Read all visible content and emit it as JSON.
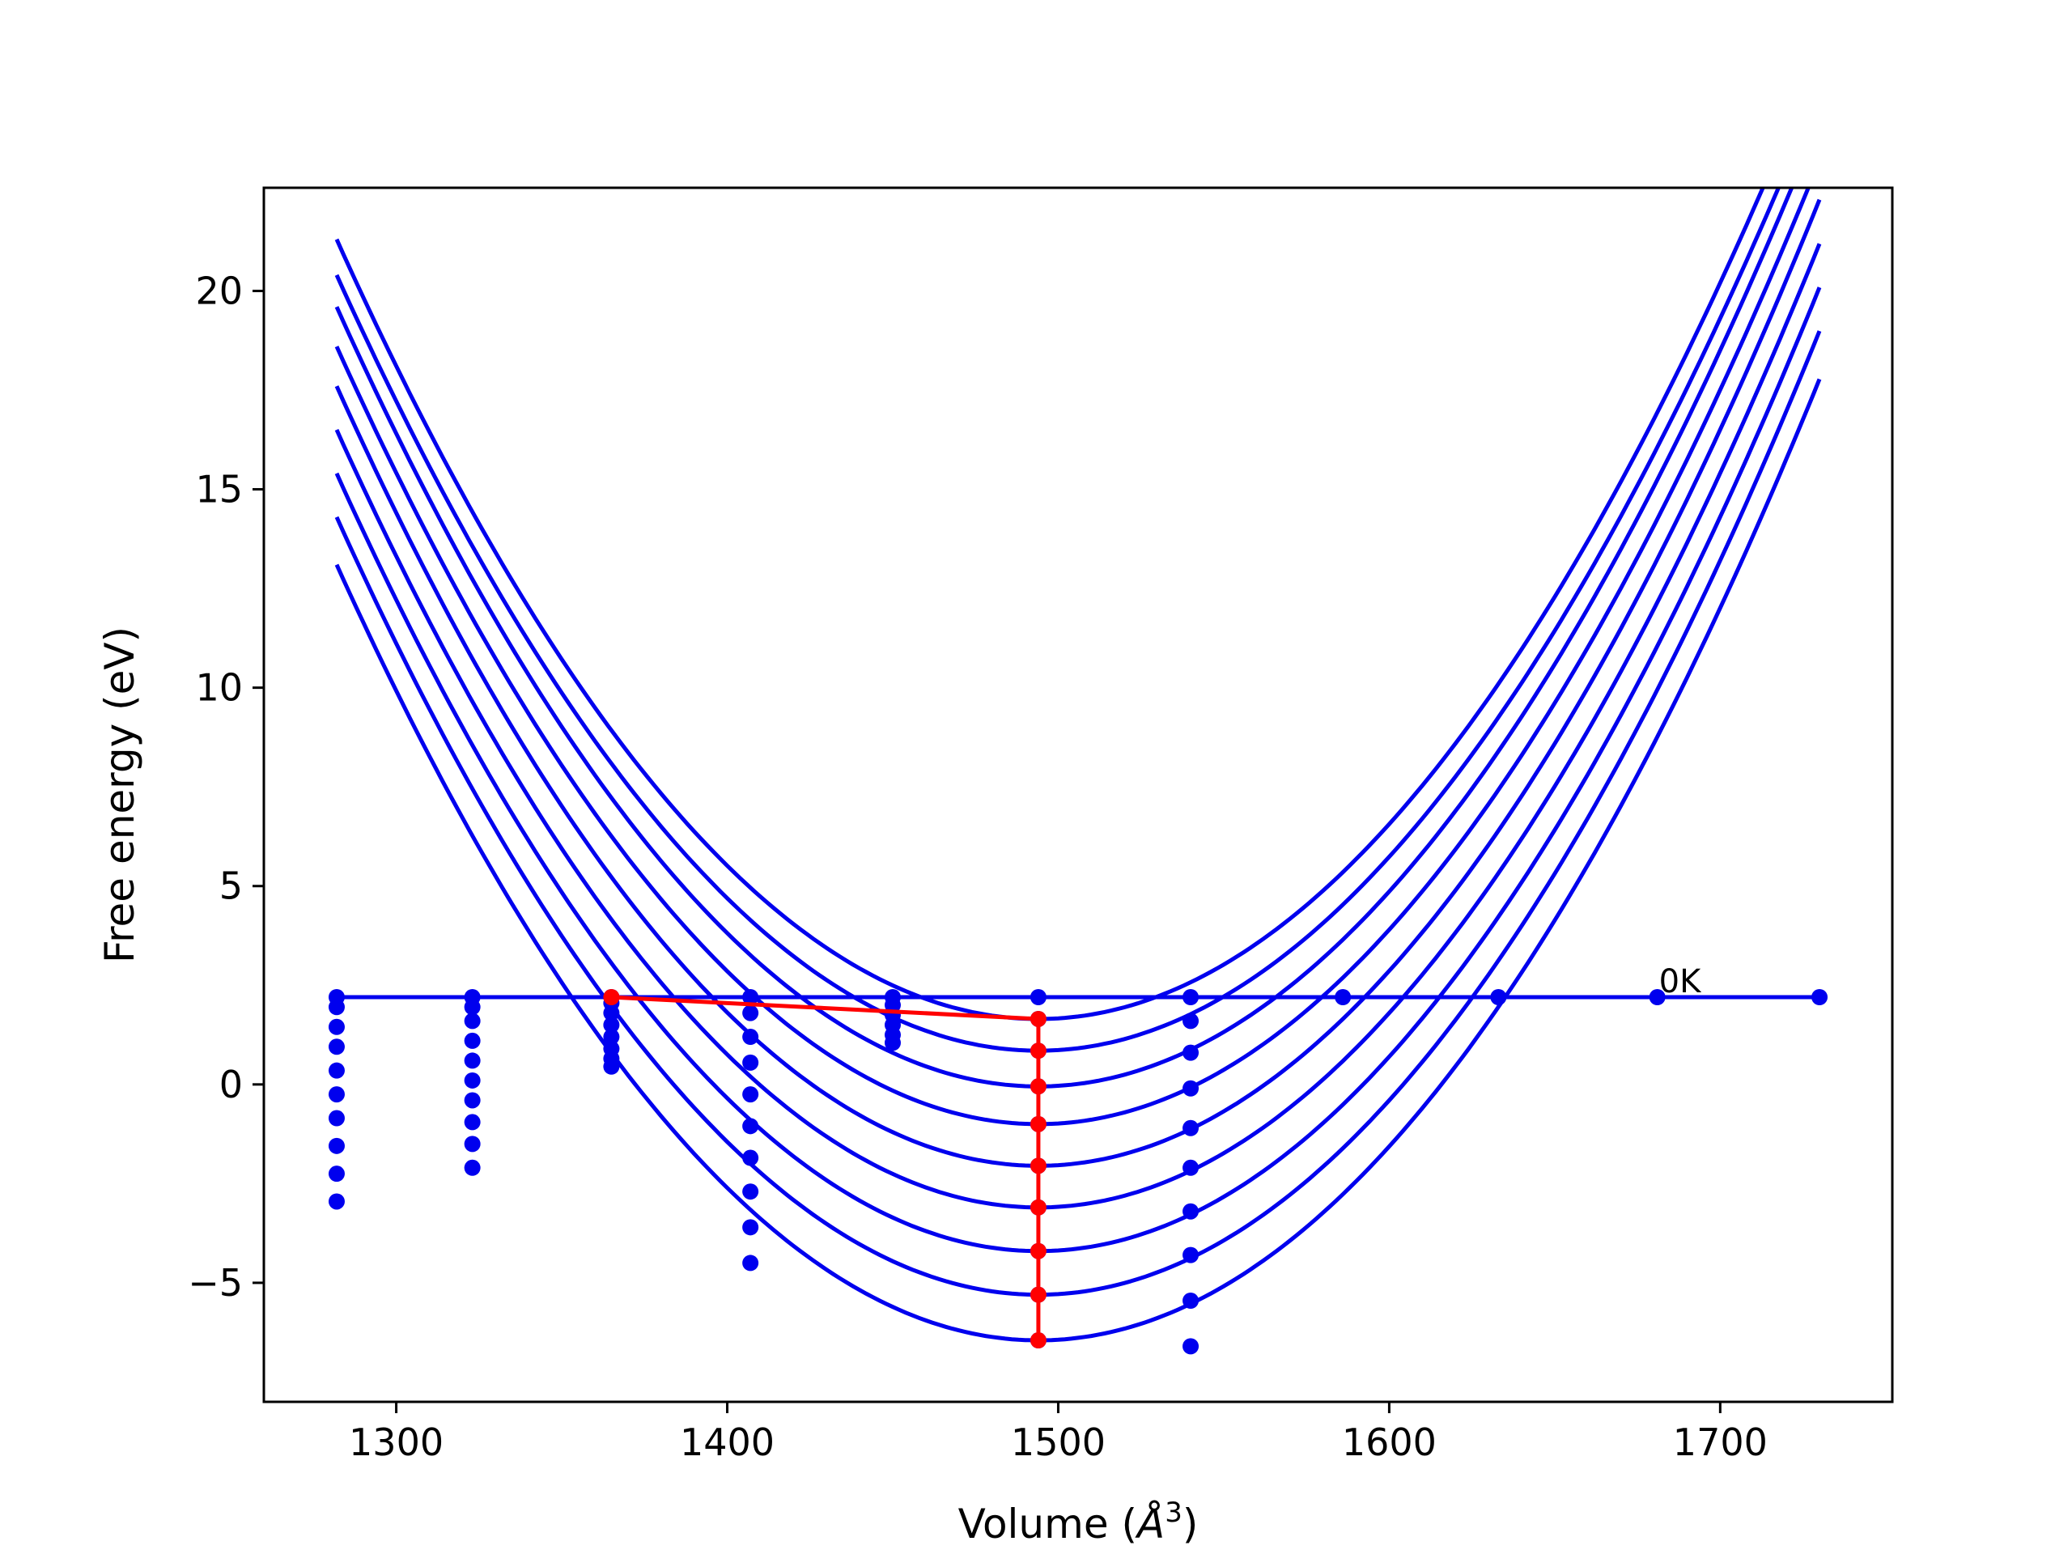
{
  "chart_data": {
    "type": "line",
    "title": "",
    "xlabel": "Volume (",
    "xlabel_unit": "Å",
    "xlabel_exp": "3",
    "xlabel_close": ")",
    "ylabel": "Free energy (eV)",
    "xlim": [
      1260,
      1752
    ],
    "ylim": [
      -8.0,
      22.6
    ],
    "xticks": [
      1300,
      1400,
      1500,
      1600,
      1700
    ],
    "yticks": [
      -5,
      0,
      5,
      10,
      15,
      20
    ],
    "ytick_labels": [
      "−5",
      "0",
      "5",
      "10",
      "15",
      "20"
    ],
    "grid": false,
    "legend": "none",
    "annotation": {
      "text": "0K",
      "x": 1681,
      "y": 2.2
    },
    "colors": {
      "curves": "#0000ee",
      "equilibrium": "#ff0000"
    },
    "curve_x_range": [
      1282,
      1730
    ],
    "curves": [
      {
        "vmin": 1494,
        "fmin": 1.65,
        "f_at_1282": 21.3
      },
      {
        "vmin": 1494,
        "fmin": 0.85,
        "f_at_1282": 20.4
      },
      {
        "vmin": 1494,
        "fmin": -0.05,
        "f_at_1282": 19.6
      },
      {
        "vmin": 1494,
        "fmin": -1.0,
        "f_at_1282": 18.6
      },
      {
        "vmin": 1494,
        "fmin": -2.05,
        "f_at_1282": 17.6
      },
      {
        "vmin": 1494,
        "fmin": -3.1,
        "f_at_1282": 16.5
      },
      {
        "vmin": 1494,
        "fmin": -4.2,
        "f_at_1282": 15.4
      },
      {
        "vmin": 1494,
        "fmin": -5.3,
        "f_at_1282": 14.3
      },
      {
        "vmin": 1494,
        "fmin": -6.45,
        "f_at_1282": 13.1
      }
    ],
    "zero_k_line": {
      "x": [
        1282,
        1323,
        1365,
        1407,
        1450,
        1494,
        1540,
        1586,
        1633,
        1681,
        1730
      ],
      "y": [
        2.2,
        2.2,
        2.2,
        2.2,
        2.2,
        2.2,
        2.2,
        2.2,
        2.2,
        2.2,
        2.2
      ]
    },
    "scatter": [
      {
        "x": 1282,
        "y": [
          2.2,
          1.95,
          1.45,
          0.95,
          0.35,
          -0.25,
          -0.85,
          -1.55,
          -2.25,
          -2.95
        ]
      },
      {
        "x": 1323,
        "y": [
          2.2,
          1.95,
          1.6,
          1.1,
          0.6,
          0.1,
          -0.4,
          -0.95,
          -1.5,
          -2.1
        ]
      },
      {
        "x": 1365,
        "y": [
          2.2,
          2.05,
          1.8,
          1.5,
          1.2,
          0.9,
          0.65,
          0.45
        ]
      },
      {
        "x": 1407,
        "y": [
          2.2,
          1.8,
          1.2,
          0.55,
          -0.25,
          -1.05,
          -1.85,
          -2.7,
          -3.6,
          -4.5
        ]
      },
      {
        "x": 1450,
        "y": [
          2.2,
          2.0,
          1.75,
          1.5,
          1.25,
          1.05
        ]
      },
      {
        "x": 1494,
        "y": [
          2.2,
          1.65,
          0.85,
          -0.05,
          -1.0,
          -2.05,
          -3.1,
          -4.2,
          -5.3,
          -6.45
        ]
      },
      {
        "x": 1540,
        "y": [
          2.2,
          1.6,
          0.8,
          -0.1,
          -1.1,
          -2.1,
          -3.2,
          -4.3,
          -5.45,
          -6.6
        ]
      },
      {
        "x": 1586,
        "y": [
          2.2
        ]
      },
      {
        "x": 1633,
        "y": [
          2.2
        ]
      },
      {
        "x": 1681,
        "y": [
          2.2
        ]
      },
      {
        "x": 1730,
        "y": [
          2.2
        ]
      }
    ],
    "equilibrium_line": {
      "x": [
        1365,
        1494,
        1494,
        1494,
        1494,
        1494,
        1494,
        1494,
        1494,
        1494
      ],
      "y": [
        2.2,
        1.65,
        0.85,
        -0.05,
        -1.0,
        -2.05,
        -3.1,
        -4.2,
        -5.3,
        -6.45
      ]
    }
  }
}
